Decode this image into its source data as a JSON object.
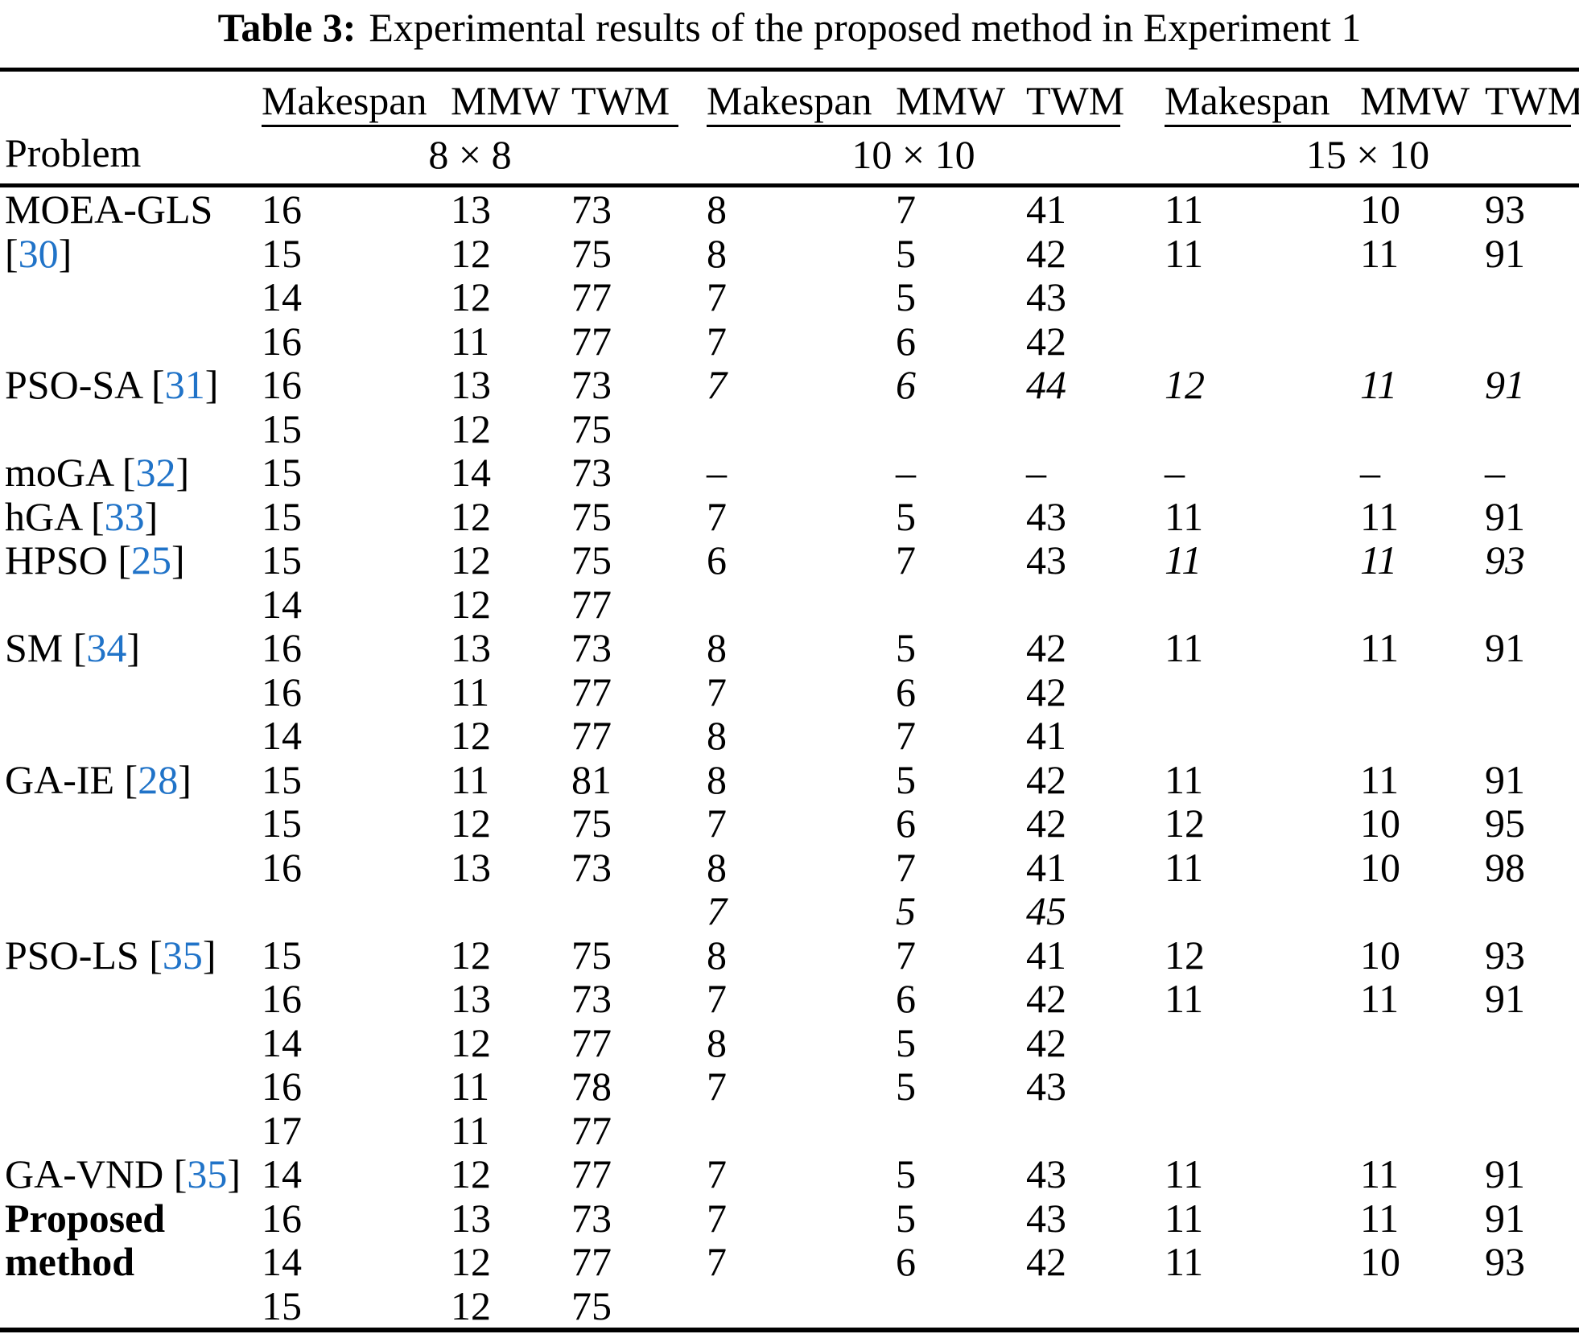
{
  "title": {
    "label": "Table 3:",
    "text": "Experimental results of the proposed method in Experiment 1"
  },
  "colors": {
    "accent": "#2073c8"
  },
  "header": {
    "problem": "Problem",
    "cols": [
      "Makespan",
      "MMW",
      "TWM"
    ],
    "groups": [
      "8 × 8",
      "10 × 10",
      "15 × 10"
    ]
  },
  "table_data": {
    "type": "table",
    "rows": [
      {
        "label": "MOEA-GLS",
        "cells": [
          "16",
          "13",
          "73",
          "8",
          "7",
          "41",
          "11",
          "10",
          "93"
        ]
      },
      {
        "label": "[30]",
        "cells": [
          "15",
          "12",
          "75",
          "8",
          "5",
          "42",
          "11",
          "11",
          "91"
        ]
      },
      {
        "label": "",
        "cells": [
          "14",
          "12",
          "77",
          "7",
          "5",
          "43",
          "",
          "",
          ""
        ]
      },
      {
        "label": "",
        "cells": [
          "16",
          "11",
          "77",
          "7",
          "6",
          "42",
          "",
          "",
          ""
        ]
      },
      {
        "label": "PSO-SA [31]",
        "cells": [
          "16",
          "13",
          "73",
          "7",
          "6",
          "44",
          "12",
          "11",
          "91"
        ],
        "italic": [
          3,
          4,
          5,
          6,
          7,
          8
        ]
      },
      {
        "label": "",
        "cells": [
          "15",
          "12",
          "75",
          "",
          "",
          "",
          "",
          "",
          ""
        ]
      },
      {
        "label": "moGA [32]",
        "cells": [
          "15",
          "14",
          "73",
          "–",
          "–",
          "–",
          "–",
          "–",
          "–"
        ]
      },
      {
        "label": "hGA [33]",
        "cells": [
          "15",
          "12",
          "75",
          "7",
          "5",
          "43",
          "11",
          "11",
          "91"
        ]
      },
      {
        "label": "HPSO [25]",
        "cells": [
          "15",
          "12",
          "75",
          "6",
          "7",
          "43",
          "11",
          "11",
          "93"
        ],
        "italic": [
          6,
          7,
          8
        ]
      },
      {
        "label": "",
        "cells": [
          "14",
          "12",
          "77",
          "",
          "",
          "",
          "",
          "",
          ""
        ]
      },
      {
        "label": "SM [34]",
        "cells": [
          "16",
          "13",
          "73",
          "8",
          "5",
          "42",
          "11",
          "11",
          "91"
        ]
      },
      {
        "label": "",
        "cells": [
          "16",
          "11",
          "77",
          "7",
          "6",
          "42",
          "",
          "",
          ""
        ]
      },
      {
        "label": "",
        "cells": [
          "14",
          "12",
          "77",
          "8",
          "7",
          "41",
          "",
          "",
          ""
        ]
      },
      {
        "label": "GA-IE [28]",
        "cells": [
          "15",
          "11",
          "81",
          "8",
          "5",
          "42",
          "11",
          "11",
          "91"
        ]
      },
      {
        "label": "",
        "cells": [
          "15",
          "12",
          "75",
          "7",
          "6",
          "42",
          "12",
          "10",
          "95"
        ]
      },
      {
        "label": "",
        "cells": [
          "16",
          "13",
          "73",
          "8",
          "7",
          "41",
          "11",
          "10",
          "98"
        ]
      },
      {
        "label": "",
        "cells": [
          "",
          "",
          "",
          "7",
          "5",
          "45",
          "",
          "",
          ""
        ],
        "italic": [
          3,
          4,
          5
        ]
      },
      {
        "label": "PSO-LS [35]",
        "cells": [
          "15",
          "12",
          "75",
          "8",
          "7",
          "41",
          "12",
          "10",
          "93"
        ]
      },
      {
        "label": "",
        "cells": [
          "16",
          "13",
          "73",
          "7",
          "6",
          "42",
          "11",
          "11",
          "91"
        ]
      },
      {
        "label": "",
        "cells": [
          "14",
          "12",
          "77",
          "8",
          "5",
          "42",
          "",
          "",
          ""
        ]
      },
      {
        "label": "",
        "cells": [
          "16",
          "11",
          "78",
          "7",
          "5",
          "43",
          "",
          "",
          ""
        ]
      },
      {
        "label": "",
        "cells": [
          "17",
          "11",
          "77",
          "",
          "",
          "",
          "",
          "",
          ""
        ]
      },
      {
        "label": "GA-VND [35]",
        "cells": [
          "14",
          "12",
          "77",
          "7",
          "5",
          "43",
          "11",
          "11",
          "91"
        ]
      },
      {
        "label": "Proposed",
        "bold": true,
        "cells": [
          "16",
          "13",
          "73",
          "7",
          "5",
          "43",
          "11",
          "11",
          "91"
        ]
      },
      {
        "label": "method",
        "bold": true,
        "cells": [
          "14",
          "12",
          "77",
          "7",
          "6",
          "42",
          "11",
          "10",
          "93"
        ]
      },
      {
        "label": "",
        "cells": [
          "15",
          "12",
          "75",
          "",
          "",
          "",
          "",
          "",
          ""
        ]
      }
    ]
  }
}
